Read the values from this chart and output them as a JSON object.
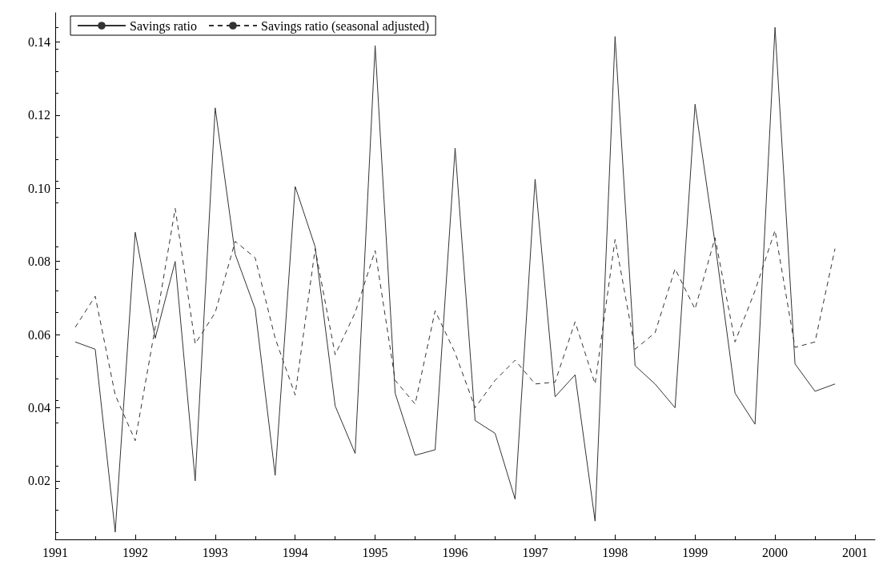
{
  "chart_data": {
    "type": "line",
    "x": [
      1991.25,
      1991.5,
      1991.75,
      1992,
      1992.25,
      1992.5,
      1992.75,
      1993,
      1993.25,
      1993.5,
      1993.75,
      1994,
      1994.25,
      1994.5,
      1994.75,
      1995,
      1995.25,
      1995.5,
      1995.75,
      1996,
      1996.25,
      1996.5,
      1996.75,
      1997,
      1997.25,
      1997.5,
      1997.75,
      1998,
      1998.25,
      1998.5,
      1998.75,
      1999,
      1999.25,
      1999.5,
      1999.75,
      2000,
      2000.25,
      2000.5,
      2000.75
    ],
    "series": [
      {
        "name": "Savings ratio",
        "color": "#333333",
        "line_style": "solid",
        "values": [
          0.058,
          0.056,
          0.006,
          0.088,
          0.059,
          0.08,
          0.02,
          0.122,
          0.082,
          0.067,
          0.0215,
          0.1005,
          0.084,
          0.0405,
          0.0275,
          0.139,
          0.044,
          0.027,
          0.0285,
          0.111,
          0.0365,
          0.033,
          0.015,
          0.1025,
          0.043,
          0.049,
          0.009,
          0.1415,
          0.0515,
          0.0465,
          0.04,
          0.123,
          0.085,
          0.044,
          0.0355,
          0.144,
          0.052,
          0.0445,
          0.0465
        ]
      },
      {
        "name": "Savings ratio (seasonal adjusted)",
        "color": "#333333",
        "line_style": "dashed",
        "values": [
          0.062,
          0.0705,
          0.0435,
          0.031,
          0.062,
          0.0945,
          0.0575,
          0.066,
          0.0855,
          0.081,
          0.059,
          0.0435,
          0.0835,
          0.0545,
          0.066,
          0.083,
          0.0475,
          0.041,
          0.0665,
          0.055,
          0.04,
          0.0475,
          0.053,
          0.0465,
          0.047,
          0.0635,
          0.0465,
          0.086,
          0.056,
          0.0605,
          0.078,
          0.067,
          0.0865,
          0.058,
          0.072,
          0.0885,
          0.0565,
          0.058,
          0.0835
        ]
      }
    ],
    "xlim": [
      1991,
      2001.25
    ],
    "xticks": [
      1991,
      1992,
      1993,
      1994,
      1995,
      1996,
      1997,
      1998,
      1999,
      2000,
      2001
    ],
    "ylim": [
      0.004,
      0.148
    ],
    "yticks": [
      {
        "value": 0.02,
        "label": "0.02"
      },
      {
        "value": 0.04,
        "label": "0.04"
      },
      {
        "value": 0.06,
        "label": "0.06"
      },
      {
        "value": 0.08,
        "label": "0.08"
      },
      {
        "value": 0.1,
        "label": "0.10"
      },
      {
        "value": 0.12,
        "label": "0.12"
      },
      {
        "value": 0.14,
        "label": "0.14"
      }
    ],
    "grid": false,
    "legend": "top left",
    "marker": "none"
  }
}
